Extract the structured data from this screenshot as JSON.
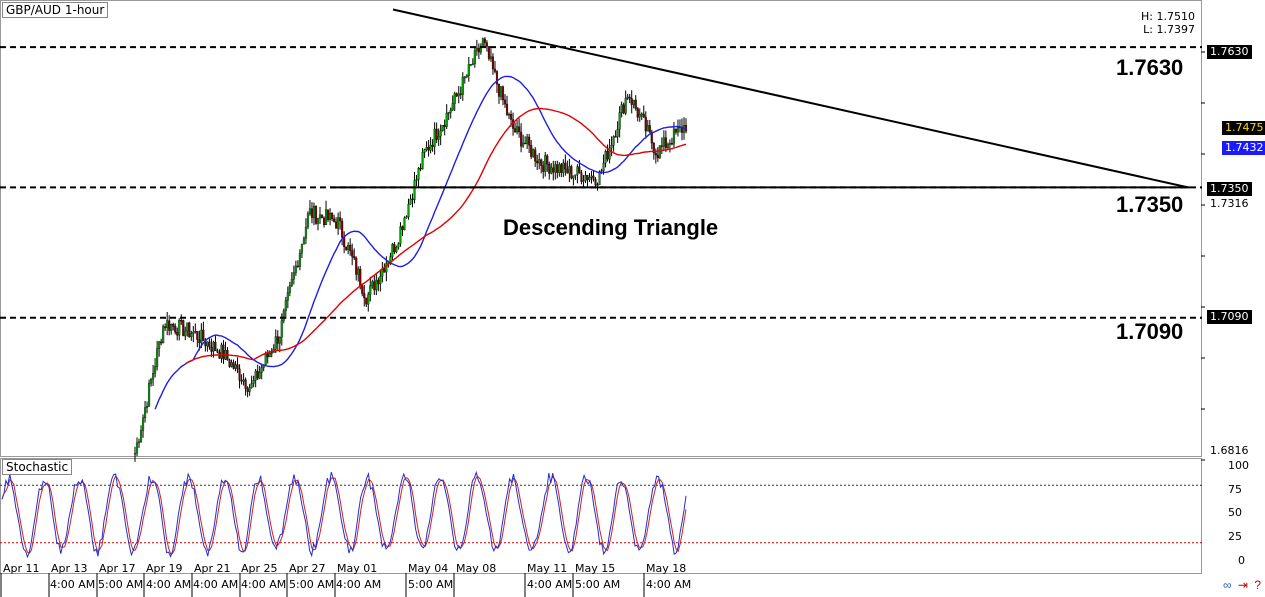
{
  "header": {
    "symbol": "GBP/AUD 1-hour",
    "high": "H: 1.7510",
    "low": "L: 1.7397"
  },
  "annotations": {
    "pattern": "Descending Triangle",
    "levels": [
      {
        "value": 1.763,
        "label": "1.7630"
      },
      {
        "value": 1.735,
        "label": "1.7350"
      },
      {
        "value": 1.709,
        "label": "1.7090"
      }
    ]
  },
  "price_axis": {
    "tags": [
      {
        "label": "1.7630",
        "style": "black"
      },
      {
        "label": "1.7475",
        "style": "yellow"
      },
      {
        "label": "1.7432",
        "style": "blue"
      },
      {
        "label": "1.7350",
        "style": "black"
      },
      {
        "label": "1.7316",
        "style": "plain"
      },
      {
        "label": "1.7090",
        "style": "black"
      },
      {
        "label": "1.6816",
        "style": "plain"
      }
    ]
  },
  "stochastic": {
    "label": "Stochastic",
    "ticks": [
      "100",
      "75",
      "50",
      "25",
      "0"
    ]
  },
  "dates": {
    "top": [
      "Apr 11",
      "Apr 13",
      "Apr 17",
      "Apr 19",
      "Apr 21",
      "Apr 25",
      "Apr 27",
      "May 01",
      "May 04",
      "May 08",
      "May 11",
      "May 15",
      "May 18"
    ],
    "bottom": [
      "4:00 AM",
      "5:00 AM",
      "4:00 AM",
      "4:00 AM",
      "4:00 AM",
      "5:00 AM",
      "4:00 AM",
      "5:00 AM",
      "4:00 AM",
      "5:00 AM",
      "4:00 AM"
    ]
  },
  "chart_data": {
    "type": "candlestick",
    "title": "GBP/AUD 1-hour",
    "ylim": [
      1.6816,
      1.772
    ],
    "x": [
      "Apr 11",
      "Apr 13",
      "Apr 17",
      "Apr 19",
      "Apr 21",
      "Apr 25",
      "Apr 27",
      "May 01",
      "May 04",
      "May 08",
      "May 11",
      "May 15",
      "May 18"
    ],
    "close_path": [
      1.682,
      1.708,
      1.706,
      1.702,
      1.695,
      1.706,
      1.73,
      1.728,
      1.713,
      1.724,
      1.742,
      1.752,
      1.764,
      1.747,
      1.74,
      1.738,
      1.737,
      1.754,
      1.742,
      1.7475
    ],
    "horizontal_levels": [
      1.763,
      1.735,
      1.709
    ],
    "trendline": {
      "start_price": 1.7705,
      "end_price": 1.735
    },
    "indicators": {
      "ma_fast_last": 1.7432,
      "ma_slow_last": 1.7475
    },
    "colors": {
      "up": "#00a000",
      "down": "#800000",
      "ma_fast": "#1e1ee0",
      "ma_slow": "#e00000"
    }
  }
}
